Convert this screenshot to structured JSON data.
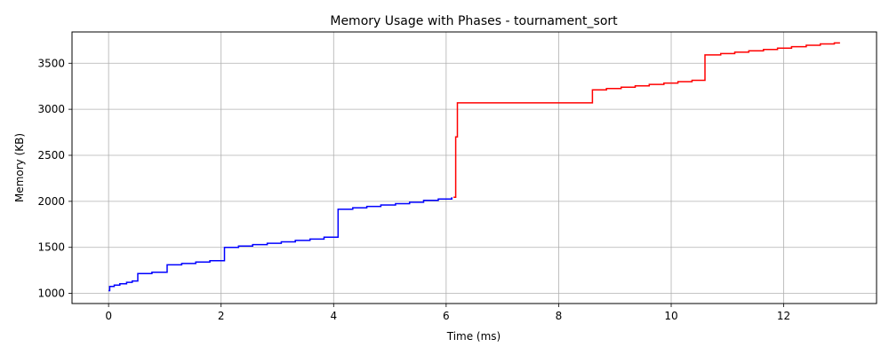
{
  "chart_data": {
    "type": "line",
    "title": "Memory Usage with Phases - tournament_sort",
    "xlabel": "Time (ms)",
    "ylabel": "Memory (KB)",
    "xlim": [
      -0.65,
      13.65
    ],
    "ylim": [
      890,
      3840
    ],
    "xticks": [
      0,
      2,
      4,
      6,
      8,
      10,
      12
    ],
    "yticks": [
      1000,
      1500,
      2000,
      2500,
      3000,
      3500
    ],
    "grid": true,
    "step": true,
    "series": [
      {
        "color": "#0000ff",
        "x": [
          0,
          0.02,
          0.1,
          0.2,
          0.32,
          0.42,
          0.52,
          0.77,
          1.04,
          1.3,
          1.55,
          1.8,
          2.06,
          2.31,
          2.56,
          2.82,
          3.07,
          3.32,
          3.58,
          3.83,
          4.08,
          4.34,
          4.59,
          4.84,
          5.1,
          5.35,
          5.6,
          5.86,
          6.1
        ],
        "y": [
          1030,
          1075,
          1090,
          1105,
          1120,
          1135,
          1215,
          1230,
          1310,
          1325,
          1340,
          1355,
          1500,
          1515,
          1530,
          1545,
          1560,
          1575,
          1590,
          1610,
          1915,
          1930,
          1945,
          1960,
          1975,
          1990,
          2010,
          2025,
          2045
        ]
      },
      {
        "color": "#ff0000",
        "x": [
          6.13,
          6.17,
          6.2,
          8.6,
          8.85,
          9.11,
          9.36,
          9.61,
          9.87,
          10.12,
          10.37,
          10.6,
          10.88,
          11.13,
          11.38,
          11.64,
          11.89,
          12.14,
          12.4,
          12.65,
          12.9,
          13.0
        ],
        "y": [
          2045,
          2700,
          3070,
          3210,
          3225,
          3240,
          3255,
          3270,
          3285,
          3300,
          3315,
          3590,
          3605,
          3620,
          3635,
          3650,
          3665,
          3680,
          3695,
          3710,
          3720,
          3720
        ]
      }
    ]
  }
}
